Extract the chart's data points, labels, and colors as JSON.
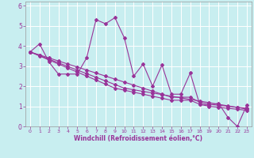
{
  "xlabel": "Windchill (Refroidissement éolien,°C)",
  "background_color": "#c8eef0",
  "grid_color": "#ffffff",
  "line_color": "#993399",
  "xlim": [
    -0.5,
    23.5
  ],
  "ylim": [
    0,
    6.2
  ],
  "xticks": [
    0,
    1,
    2,
    3,
    4,
    5,
    6,
    7,
    8,
    9,
    10,
    11,
    12,
    13,
    14,
    15,
    16,
    17,
    18,
    19,
    20,
    21,
    22,
    23
  ],
  "yticks": [
    0,
    1,
    2,
    3,
    4,
    5,
    6
  ],
  "series1_x": [
    0,
    1,
    2,
    3,
    4,
    5,
    6,
    7,
    8,
    9,
    10,
    11,
    12,
    13,
    14,
    15,
    16,
    17,
    18,
    19,
    20,
    21,
    22,
    23
  ],
  "series1_y": [
    3.7,
    4.1,
    3.2,
    2.6,
    2.6,
    2.6,
    3.4,
    5.3,
    5.1,
    5.4,
    4.4,
    2.5,
    3.1,
    2.0,
    3.05,
    1.6,
    1.6,
    2.65,
    1.1,
    1.05,
    1.15,
    0.45,
    0.0,
    1.05
  ],
  "series2_x": [
    0,
    1,
    2,
    3,
    4,
    5,
    6,
    7,
    8,
    9,
    10,
    11,
    12,
    13,
    14,
    15,
    16,
    17,
    18,
    19,
    20,
    21,
    22,
    23
  ],
  "series2_y": [
    3.7,
    3.55,
    3.4,
    3.25,
    3.1,
    2.95,
    2.8,
    2.65,
    2.5,
    2.35,
    2.2,
    2.05,
    1.9,
    1.75,
    1.6,
    1.45,
    1.45,
    1.45,
    1.2,
    1.1,
    1.05,
    1.0,
    0.95,
    0.9
  ],
  "series3_x": [
    0,
    1,
    2,
    3,
    4,
    5,
    6,
    7,
    8,
    9,
    10,
    11,
    12,
    13,
    14,
    15,
    16,
    17,
    18,
    19,
    20,
    21,
    22,
    23
  ],
  "series3_y": [
    3.7,
    3.52,
    3.34,
    3.16,
    2.98,
    2.8,
    2.62,
    2.44,
    2.26,
    2.08,
    1.9,
    1.82,
    1.74,
    1.66,
    1.58,
    1.5,
    1.42,
    1.34,
    1.26,
    1.18,
    1.1,
    1.02,
    0.94,
    0.86
  ],
  "series4_x": [
    0,
    1,
    2,
    3,
    4,
    5,
    6,
    7,
    8,
    9,
    10,
    11,
    12,
    13,
    14,
    15,
    16,
    17,
    18,
    19,
    20,
    21,
    22,
    23
  ],
  "series4_y": [
    3.7,
    3.5,
    3.3,
    3.1,
    2.9,
    2.7,
    2.5,
    2.3,
    2.1,
    1.9,
    1.8,
    1.7,
    1.6,
    1.5,
    1.4,
    1.3,
    1.3,
    1.3,
    1.1,
    1.0,
    0.95,
    0.9,
    0.85,
    0.8
  ],
  "marker": "D",
  "markersize": 2.0,
  "linewidth": 0.8
}
